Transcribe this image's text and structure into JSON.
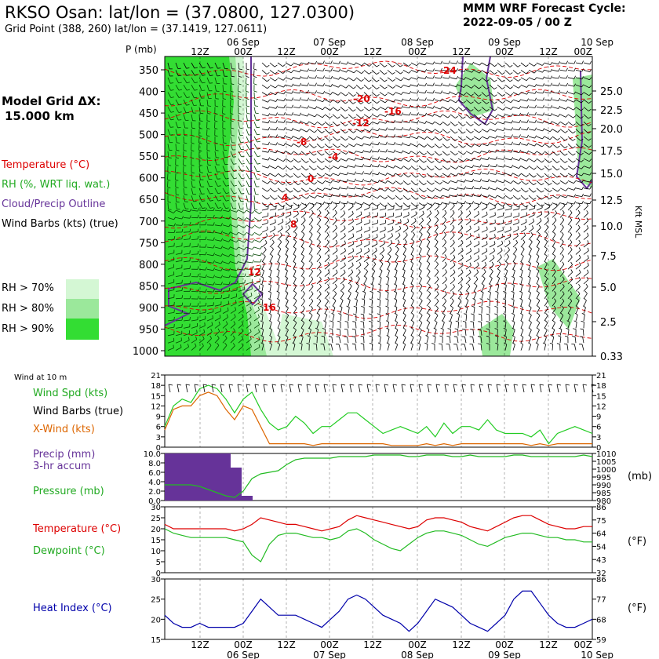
{
  "header": {
    "title": "RKSO Osan:  lat/lon = (37.0800, 127.0300)",
    "subtitle": "Grid Point (388, 260) lat/lon = (37.1419, 127.0611)",
    "cycle_line1": "MMM WRF Forecast Cycle:",
    "cycle_line2": "2022-09-05 / 00  Z",
    "grid_label": "Model Grid ΔX:",
    "grid_value": "15.000 km"
  },
  "legend": {
    "temperature": "Temperature (°C)",
    "rh": "RH (%, WRT liq. wat.)",
    "cloud": "Cloud/Precip Outline",
    "barbs": "Wind Barbs (kts) (true)",
    "rh70": "RH > 70%",
    "rh80": "RH > 80%",
    "rh90": "RH > 90%",
    "colors": {
      "rh70": "#d4f7d4",
      "rh80": "#9be89b",
      "rh90": "#33dd33",
      "temperature": "#dd0000",
      "rh_text": "#22aa22",
      "cloud": "#663399"
    }
  },
  "time_axis": {
    "top_dates": [
      "06 Sep",
      "07 Sep",
      "08 Sep",
      "09 Sep",
      "10 Sep"
    ],
    "ticks": [
      "12Z",
      "00Z",
      "12Z",
      "00Z",
      "12Z",
      "00Z",
      "12Z",
      "00Z",
      "12Z",
      "00Z"
    ],
    "p_label": "P (mb)",
    "height_label": "Kft MSL"
  },
  "chart_data": [
    {
      "type": "contour",
      "title": "Time-height cross section",
      "y_pressure_ticks": [
        "350",
        "400",
        "450",
        "500",
        "550",
        "600",
        "650",
        "700",
        "750",
        "800",
        "850",
        "900",
        "950",
        "1000"
      ],
      "y_height_ticks": [
        "25.0",
        "22.5",
        "20.0",
        "17.5",
        "15.0",
        "12.5",
        "10.0",
        "7.5",
        "5.0",
        "2.5",
        "0.33"
      ],
      "temperature_contour_labels": [
        "-24",
        "-20",
        "-16",
        "-12",
        "-8",
        "-4",
        "0",
        "4",
        "8",
        "12",
        "16"
      ]
    },
    {
      "type": "line",
      "title": "Wind at 10 m",
      "labels": {
        "spd": "Wind Spd (kts)",
        "barbs": "Wind Barbs (true)",
        "xwind": "X-Wind (kts)"
      },
      "yticks": [
        "21",
        "18",
        "15",
        "12",
        "9",
        "6",
        "3",
        "0"
      ],
      "ylim": [
        0,
        21
      ],
      "series": [
        {
          "name": "Wind Spd (kts)",
          "color": "#22cc22",
          "values": [
            6,
            12,
            14,
            13,
            17,
            18,
            17,
            14,
            10,
            14,
            16,
            11,
            7,
            5,
            6,
            9,
            7,
            4,
            6,
            6,
            8,
            10,
            10,
            8,
            6,
            4,
            5,
            6,
            5,
            4,
            6,
            3,
            7,
            4,
            6,
            6,
            5,
            8,
            5,
            4,
            4,
            4,
            3,
            5,
            1,
            4,
            5,
            6,
            5,
            4
          ]
        },
        {
          "name": "X-Wind (kts)",
          "color": "#dd6600",
          "values": [
            5,
            11,
            12,
            12,
            15,
            16,
            15,
            11,
            8,
            12,
            11,
            6,
            1,
            1,
            1,
            1,
            1,
            0.5,
            1,
            1,
            1,
            1,
            1,
            1,
            1,
            1,
            0.5,
            0.5,
            0.5,
            0.5,
            1,
            0.5,
            1,
            0.5,
            1,
            1,
            1,
            1,
            1,
            1,
            1,
            1,
            0.5,
            1,
            0.5,
            1,
            1,
            1,
            1,
            1
          ]
        }
      ]
    },
    {
      "type": "bar+line",
      "title": "Precip / Pressure",
      "labels": {
        "precip": "Precip (mm)",
        "accum": "3-hr accum",
        "pressure": "Pressure (mb)",
        "unit": "(mb)"
      },
      "y_left_ticks": [
        "10.0",
        "8.0",
        "6.0",
        "4.0",
        "2.0",
        "0.0"
      ],
      "y_right_ticks": [
        "1010",
        "1005",
        "1000",
        "995",
        "990",
        "985",
        "980"
      ],
      "precip_mm": [
        10,
        10,
        10,
        10,
        10,
        10,
        7,
        1,
        0,
        0,
        0,
        0,
        0,
        0,
        0,
        0
      ],
      "pressure_mb": [
        990,
        990,
        990,
        990,
        989,
        987,
        985,
        983,
        982,
        986,
        994,
        997,
        998,
        999,
        1003,
        1006,
        1007,
        1007,
        1007,
        1007,
        1008,
        1008,
        1008,
        1008,
        1009,
        1009,
        1009,
        1009,
        1008,
        1008,
        1009,
        1009,
        1009,
        1008,
        1008,
        1009,
        1008,
        1008,
        1008,
        1008,
        1009,
        1009,
        1008,
        1008,
        1008,
        1008,
        1008,
        1008,
        1009,
        1008
      ],
      "colors": {
        "precip": "#663399",
        "pressure": "#22bb22"
      }
    },
    {
      "type": "line",
      "title": "Temperature / Dewpoint",
      "labels": {
        "temp": "Temperature (°C)",
        "dew": "Dewpoint (°C)",
        "unit": "(°F)"
      },
      "y_left_ticks": [
        "30",
        "25",
        "20",
        "15",
        "10",
        "5",
        "0"
      ],
      "y_right_ticks": [
        "86",
        "75",
        "64",
        "54",
        "43",
        "32"
      ],
      "ylim": [
        0,
        30
      ],
      "series": [
        {
          "name": "Temperature",
          "color": "#dd0000",
          "values": [
            22,
            20,
            20,
            20,
            20,
            20,
            20,
            20,
            19,
            20,
            22,
            25,
            24,
            23,
            22,
            22,
            21,
            20,
            19,
            20,
            21,
            24,
            26,
            25,
            24,
            23,
            22,
            21,
            20,
            21,
            24,
            25,
            25,
            24,
            23,
            21,
            20,
            19,
            21,
            23,
            25,
            26,
            26,
            24,
            22,
            21,
            20,
            20,
            21,
            21
          ]
        },
        {
          "name": "Dewpoint",
          "color": "#22bb22",
          "values": [
            20,
            18,
            17,
            16,
            16,
            16,
            16,
            16,
            15,
            14,
            8,
            5,
            13,
            17,
            18,
            18,
            17,
            16,
            16,
            15,
            16,
            19,
            20,
            18,
            15,
            13,
            11,
            10,
            13,
            16,
            18,
            19,
            19,
            18,
            17,
            15,
            13,
            12,
            14,
            16,
            17,
            18,
            18,
            17,
            16,
            16,
            15,
            15,
            14,
            14
          ]
        }
      ]
    },
    {
      "type": "line",
      "title": "Heat Index",
      "labels": {
        "hi": "Heat Index (°C)",
        "unit": "(°F)"
      },
      "y_left_ticks": [
        "30",
        "25",
        "20",
        "15"
      ],
      "y_right_ticks": [
        "86",
        "77",
        "68",
        "59"
      ],
      "ylim": [
        15,
        30
      ],
      "series": [
        {
          "name": "Heat Index",
          "color": "#0000aa",
          "values": [
            21,
            19,
            18,
            18,
            19,
            18,
            18,
            18,
            18,
            19,
            22,
            25,
            23,
            21,
            21,
            21,
            20,
            19,
            18,
            20,
            22,
            25,
            26,
            25,
            23,
            21,
            20,
            19,
            17,
            19,
            22,
            25,
            24,
            23,
            21,
            19,
            18,
            17,
            19,
            21,
            25,
            27,
            27,
            24,
            21,
            19,
            18,
            18,
            19,
            20
          ]
        }
      ]
    }
  ],
  "bottom_axis": {
    "ticks": [
      "12Z",
      "00Z",
      "12Z",
      "00Z",
      "12Z",
      "00Z",
      "12Z",
      "00Z",
      "12Z",
      "00Z"
    ],
    "dates": [
      "06 Sep",
      "07 Sep",
      "08 Sep",
      "09 Sep",
      "10 Sep"
    ]
  },
  "wind_panel_label": "Wind at 10 m"
}
